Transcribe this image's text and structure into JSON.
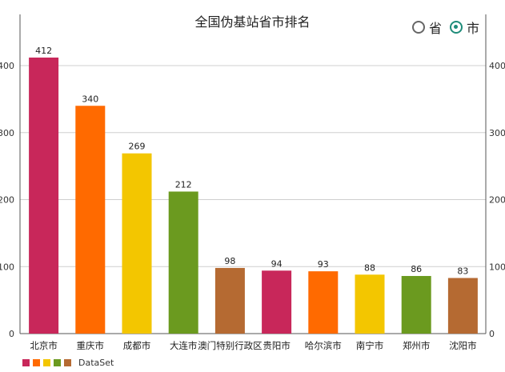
{
  "header": {
    "title": "全国伪基站省市排名",
    "toggle_province": "省",
    "toggle_city": "市",
    "selected": "市"
  },
  "colors": {
    "accent": "#1f8c7a",
    "palette": [
      "#c8275a",
      "#ff6a00",
      "#f3c600",
      "#6b9a1f",
      "#b56a32"
    ]
  },
  "legend": {
    "label": "DataSet"
  },
  "chart_data": {
    "type": "bar",
    "title": "全国伪基站省市排名",
    "categories": [
      "北京市",
      "重庆市",
      "成都市",
      "大连市",
      "澳门特别行政区",
      "贵阳市",
      "哈尔滨市",
      "南宁市",
      "郑州市",
      "沈阳市"
    ],
    "series": [
      {
        "name": "DataSet",
        "values": [
          412,
          340,
          269,
          212,
          98,
          94,
          93,
          88,
          86,
          83
        ]
      }
    ],
    "ylim": [
      0,
      450
    ],
    "yticks": [
      0,
      100,
      200,
      300,
      400
    ],
    "grid": true,
    "legend_position": "bottom-left"
  }
}
